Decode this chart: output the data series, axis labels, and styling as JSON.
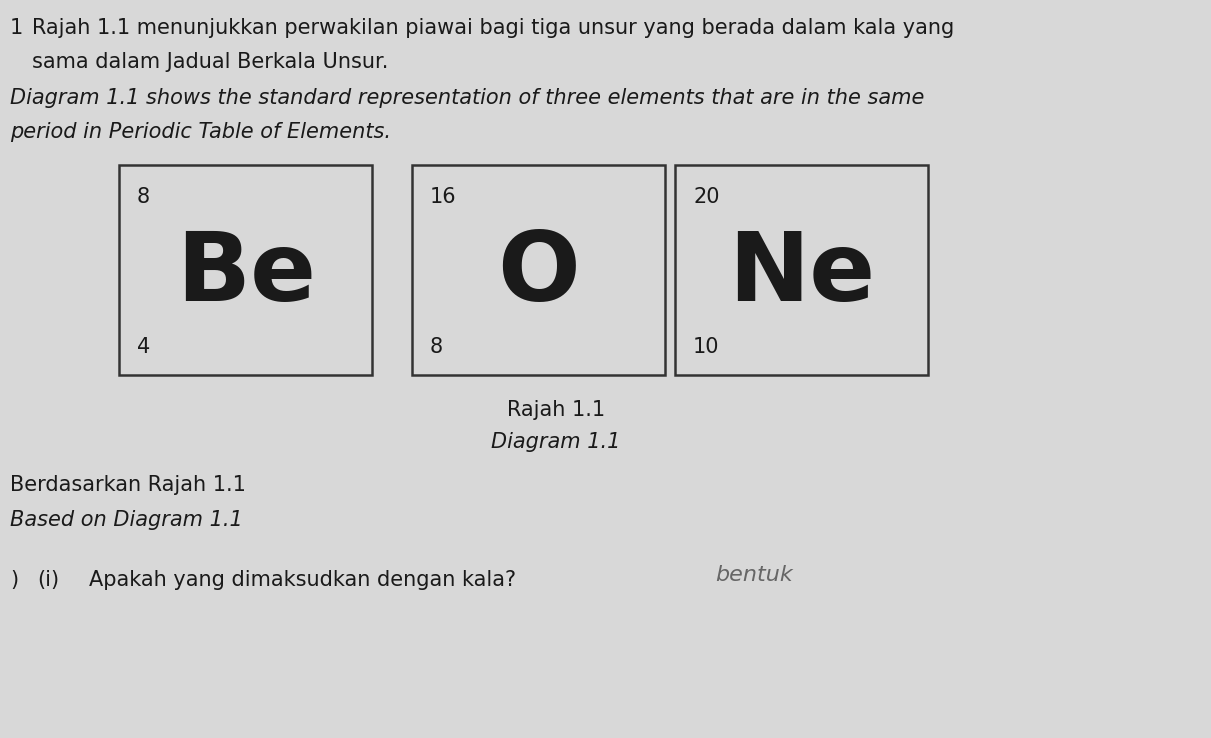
{
  "bg_color": "#d8d8d8",
  "box_color": "#d8d8d8",
  "text_color": "#1a1a1a",
  "border_color": "#333333",
  "title_line1_num": "1",
  "title_line1_text": " Rajah 1.1 menunjukkan perwakilan piawai bagi tiga unsur yang berada dalam kala yang",
  "title_line2": " sama dalam Jadual Berkala Unsur.",
  "title_line3": "Diagram 1.1 shows the standard representation of three elements that are in the same",
  "title_line4": "period in Periodic Table of Elements.",
  "elements": [
    {
      "symbol": "Be",
      "mass": "8",
      "atomic": "4"
    },
    {
      "symbol": "O",
      "mass": "16",
      "atomic": "8"
    },
    {
      "symbol": "Ne",
      "mass": "20",
      "atomic": "10"
    }
  ],
  "caption_line1": "Rajah 1.1",
  "caption_line2": "Diagram 1.1",
  "footer_line1": "Berdasarkan Rajah 1.1",
  "footer_line2": "Based on Diagram 1.1",
  "question_prefix": ")",
  "question_num": "(i)",
  "question_text": "Apakah yang dimaksudkan dengan kala?",
  "handwritten": "bentuk",
  "fig_w": 12.11,
  "fig_h": 7.38,
  "dpi": 100
}
